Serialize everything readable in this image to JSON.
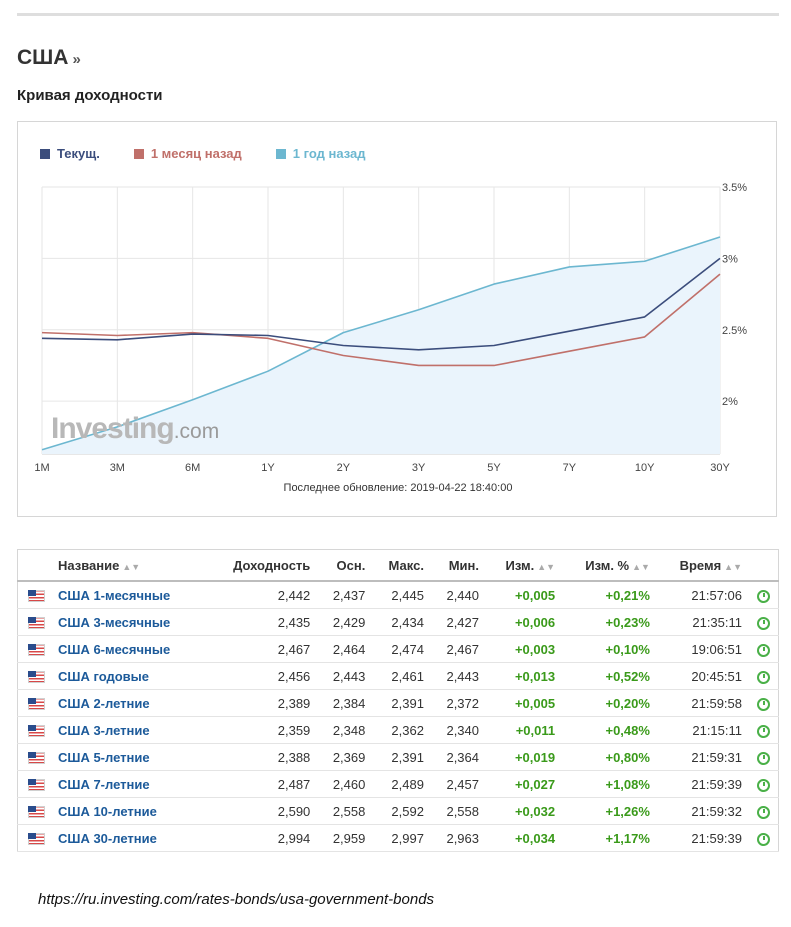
{
  "header": {
    "title": "США",
    "title_suffix": "»",
    "section": "Кривая доходности"
  },
  "chart": {
    "legend": [
      {
        "label": "Текущ.",
        "color": "#3b4d7c"
      },
      {
        "label": "1 месяц назад",
        "color": "#c0706a"
      },
      {
        "label": "1 год назад",
        "color": "#6cb7d0"
      }
    ],
    "update_note": "Последнее обновление: 2019-04-22 18:40:00",
    "watermark": {
      "main": "Investing",
      "suffix": ".com"
    }
  },
  "chart_data": {
    "type": "line",
    "categories": [
      "1M",
      "3M",
      "6M",
      "1Y",
      "2Y",
      "3Y",
      "5Y",
      "7Y",
      "10Y",
      "30Y"
    ],
    "y_ticks": [
      "2%",
      "2.5%",
      "3%",
      "3.5%"
    ],
    "ylim": [
      1.63,
      3.5
    ],
    "y_axis_position": "right",
    "grid": true,
    "legend_position": "top-left",
    "series": [
      {
        "name": "Текущ.",
        "color": "#3b4d7c",
        "values": [
          2.44,
          2.43,
          2.47,
          2.46,
          2.39,
          2.36,
          2.39,
          2.49,
          2.59,
          3.0
        ]
      },
      {
        "name": "1 месяц назад",
        "color": "#c0706a",
        "values": [
          2.48,
          2.46,
          2.48,
          2.44,
          2.32,
          2.25,
          2.25,
          2.35,
          2.45,
          2.89
        ]
      },
      {
        "name": "1 год назад",
        "color": "#6cb7d0",
        "values": [
          1.66,
          1.82,
          2.01,
          2.21,
          2.48,
          2.64,
          2.82,
          2.94,
          2.98,
          3.15
        ],
        "fill": true
      }
    ]
  },
  "table": {
    "headers": [
      "Название",
      "Доходность",
      "Осн.",
      "Макс.",
      "Мин.",
      "Изм.",
      "Изм. %",
      "Время"
    ],
    "rows": [
      {
        "name": "США 1-месячные",
        "yield": "2,442",
        "base": "2,437",
        "high": "2,445",
        "low": "2,440",
        "chg": "+0,005",
        "chg_pct": "+0,21%",
        "time": "21:57:06"
      },
      {
        "name": "США 3-месячные",
        "yield": "2,435",
        "base": "2,429",
        "high": "2,434",
        "low": "2,427",
        "chg": "+0,006",
        "chg_pct": "+0,23%",
        "time": "21:35:11"
      },
      {
        "name": "США 6-месячные",
        "yield": "2,467",
        "base": "2,464",
        "high": "2,474",
        "low": "2,467",
        "chg": "+0,003",
        "chg_pct": "+0,10%",
        "time": "19:06:51"
      },
      {
        "name": "США годовые",
        "yield": "2,456",
        "base": "2,443",
        "high": "2,461",
        "low": "2,443",
        "chg": "+0,013",
        "chg_pct": "+0,52%",
        "time": "20:45:51"
      },
      {
        "name": "США 2-летние",
        "yield": "2,389",
        "base": "2,384",
        "high": "2,391",
        "low": "2,372",
        "chg": "+0,005",
        "chg_pct": "+0,20%",
        "time": "21:59:58"
      },
      {
        "name": "США 3-летние",
        "yield": "2,359",
        "base": "2,348",
        "high": "2,362",
        "low": "2,340",
        "chg": "+0,011",
        "chg_pct": "+0,48%",
        "time": "21:15:11"
      },
      {
        "name": "США 5-летние",
        "yield": "2,388",
        "base": "2,369",
        "high": "2,391",
        "low": "2,364",
        "chg": "+0,019",
        "chg_pct": "+0,80%",
        "time": "21:59:31"
      },
      {
        "name": "США 7-летние",
        "yield": "2,487",
        "base": "2,460",
        "high": "2,489",
        "low": "2,457",
        "chg": "+0,027",
        "chg_pct": "+1,08%",
        "time": "21:59:39"
      },
      {
        "name": "США 10-летние",
        "yield": "2,590",
        "base": "2,558",
        "high": "2,592",
        "low": "2,558",
        "chg": "+0,032",
        "chg_pct": "+1,26%",
        "time": "21:59:32"
      },
      {
        "name": "США 30-летние",
        "yield": "2,994",
        "base": "2,959",
        "high": "2,997",
        "low": "2,963",
        "chg": "+0,034",
        "chg_pct": "+1,17%",
        "time": "21:59:39"
      }
    ]
  },
  "source": {
    "url": "https://ru.investing.com/rates-bonds/usa-government-bonds"
  }
}
